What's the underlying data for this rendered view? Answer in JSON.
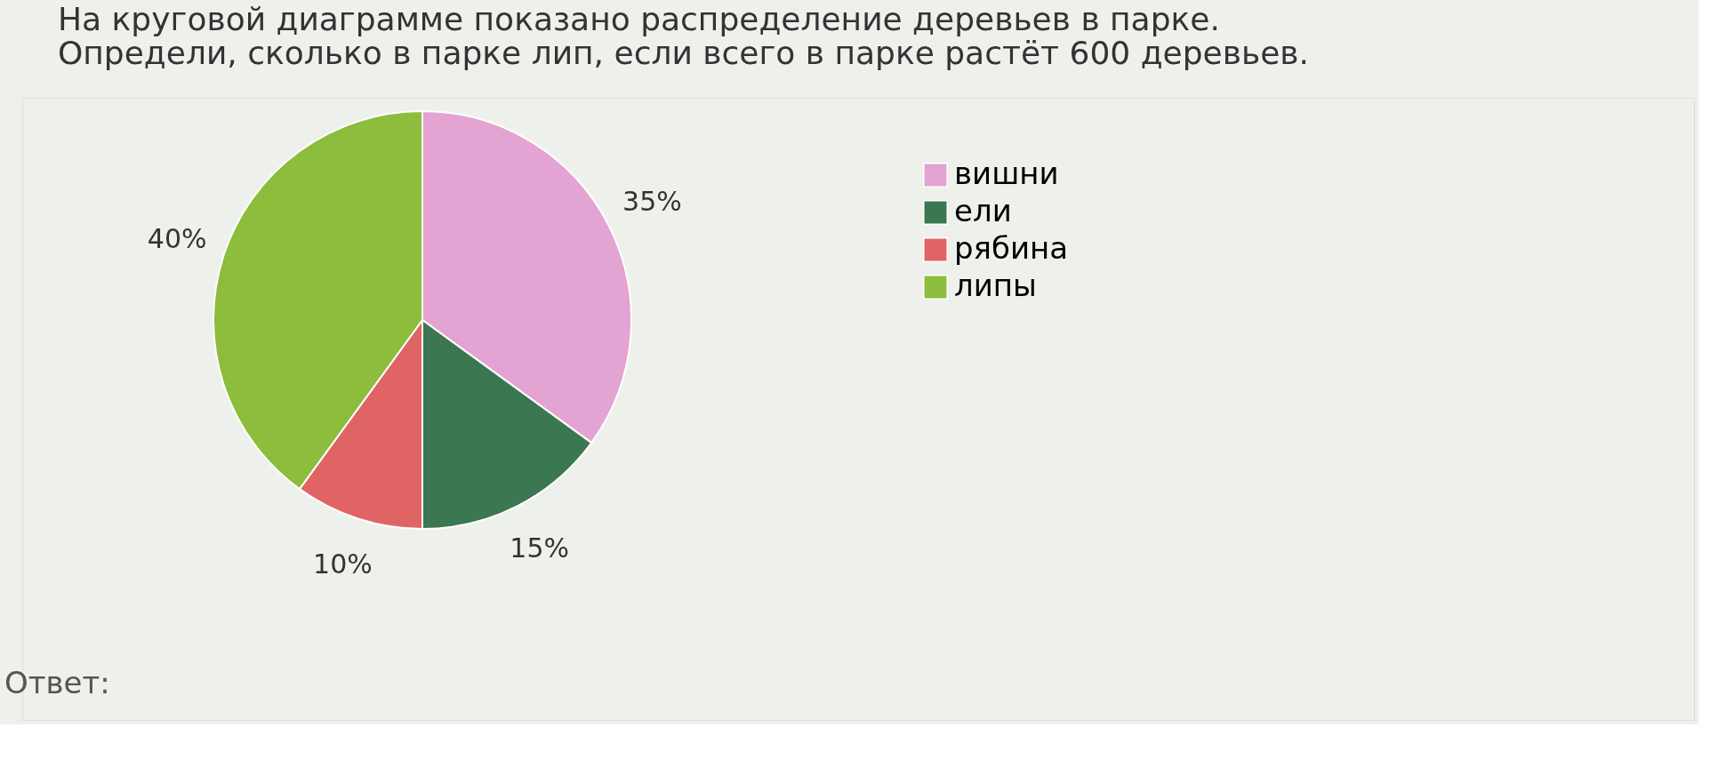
{
  "chart_data": {
    "type": "pie",
    "title": "На круговой диаграмме показано распределение деревьев в парке. Определи, сколько в парке лип, если всего в парке растёт 600 деревьев.",
    "categories": [
      "вишни",
      "ели",
      "рябина",
      "липы"
    ],
    "values": [
      35,
      15,
      10,
      40
    ],
    "colors": [
      "#e3a3d3",
      "#3b7750",
      "#e06464",
      "#8cbd3c"
    ],
    "value_labels": [
      "35%",
      "15%",
      "10%",
      "40%"
    ],
    "legend": "right",
    "annotations": [
      "Ответ:"
    ]
  }
}
